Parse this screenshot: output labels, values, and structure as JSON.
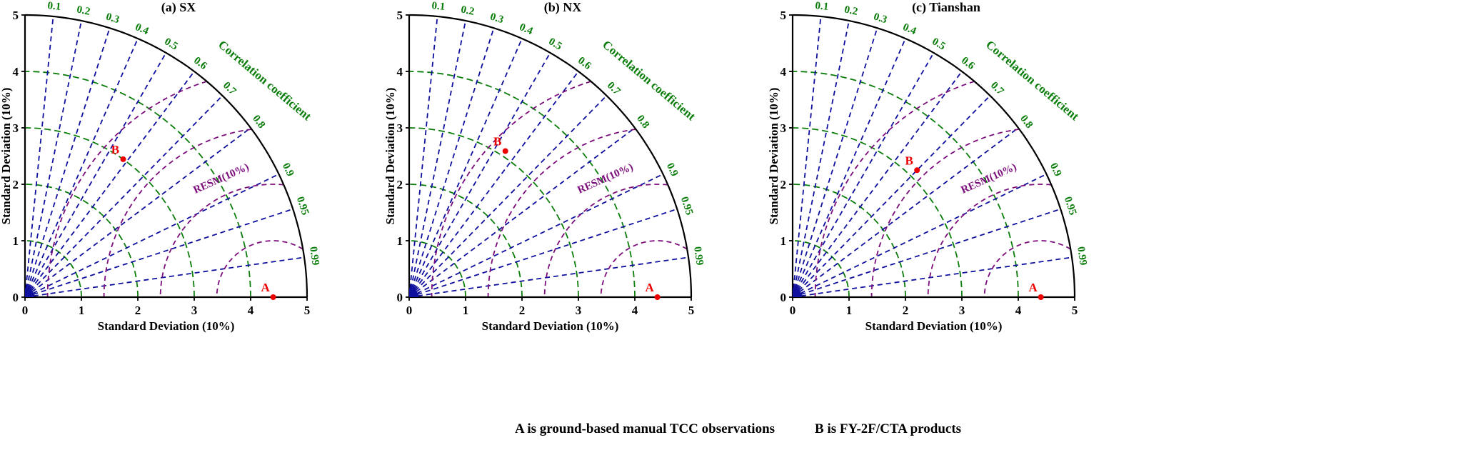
{
  "figure": {
    "captions": {
      "a": "A is ground-based manual TCC observations",
      "b": "B is FY-2F/CTA products"
    }
  },
  "style": {
    "correlation_line_color": "#10109e",
    "std_arc_color": "#0b7d0b",
    "rms_arc_color": "#7c0e7c",
    "point_color": "#ee0000",
    "axis_color": "#000000"
  },
  "chart_data": [
    {
      "type": "scatter",
      "subtype": "taylor_diagram",
      "title": "(a) SX",
      "xlabel": "Standard Deviation (10%)",
      "ylabel": "Standard Deviation (10%)",
      "correlation_axis_label": "Correlation coefficient",
      "rms_label": "RESM(10%)",
      "std_range": [
        0,
        5
      ],
      "std_ticks": [
        0,
        1,
        2,
        3,
        4,
        5
      ],
      "std_arcs": [
        1,
        2,
        3,
        4
      ],
      "rms_arcs": [
        1,
        2,
        3,
        4
      ],
      "correlation_ticks": [
        0.1,
        0.2,
        0.3,
        0.4,
        0.5,
        0.6,
        0.7,
        0.8,
        0.9,
        0.95,
        0.99
      ],
      "points": [
        {
          "label": "A",
          "std": 4.4,
          "correlation": 1.0
        },
        {
          "label": "B",
          "std": 3.0,
          "correlation": 0.58
        }
      ]
    },
    {
      "type": "scatter",
      "subtype": "taylor_diagram",
      "title": "(b) NX",
      "xlabel": "Standard Deviation (10%)",
      "ylabel": "Standard Deviation (10%)",
      "correlation_axis_label": "Correlation coefficient",
      "rms_label": "RESM(10%)",
      "std_range": [
        0,
        5
      ],
      "std_ticks": [
        0,
        1,
        2,
        3,
        4,
        5
      ],
      "std_arcs": [
        1,
        2,
        3,
        4
      ],
      "rms_arcs": [
        1,
        2,
        3,
        4
      ],
      "correlation_ticks": [
        0.1,
        0.2,
        0.3,
        0.4,
        0.5,
        0.6,
        0.7,
        0.8,
        0.9,
        0.95,
        0.99
      ],
      "points": [
        {
          "label": "A",
          "std": 4.4,
          "correlation": 1.0
        },
        {
          "label": "B",
          "std": 3.1,
          "correlation": 0.55
        }
      ]
    },
    {
      "type": "scatter",
      "subtype": "taylor_diagram",
      "title": "(c) Tianshan",
      "xlabel": "Standard Deviation (10%)",
      "ylabel": "Standard Deviation (10%)",
      "correlation_axis_label": "Correlation coefficient",
      "rms_label": "RESM(10%)",
      "std_range": [
        0,
        5
      ],
      "std_ticks": [
        0,
        1,
        2,
        3,
        4,
        5
      ],
      "std_arcs": [
        1,
        2,
        3,
        4
      ],
      "rms_arcs": [
        1,
        2,
        3,
        4
      ],
      "correlation_ticks": [
        0.1,
        0.2,
        0.3,
        0.4,
        0.5,
        0.6,
        0.7,
        0.8,
        0.9,
        0.95,
        0.99
      ],
      "points": [
        {
          "label": "A",
          "std": 4.4,
          "correlation": 1.0
        },
        {
          "label": "B",
          "std": 3.15,
          "correlation": 0.7
        }
      ]
    }
  ]
}
